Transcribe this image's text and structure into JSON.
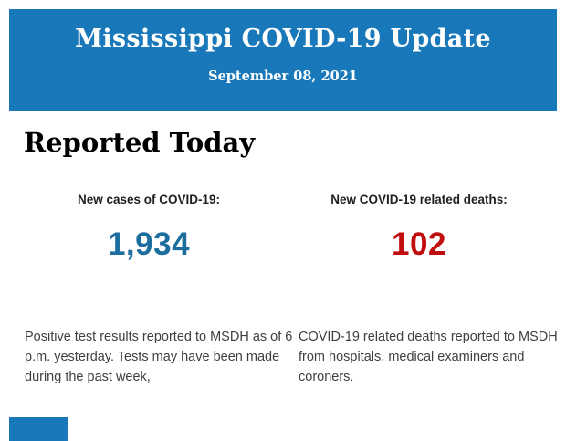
{
  "header": {
    "title": "Mississippi COVID-19 Update",
    "date": "September 08, 2021",
    "background_color": "#1878B9",
    "text_color": "#FFFFFF"
  },
  "main": {
    "heading": "Reported Today",
    "stats": [
      {
        "label": "New cases of COVID-19:",
        "value": "1,934",
        "value_color": "#1B6E9E",
        "description": "Positive test results reported to MSDH as of 6 p.m. yesterday. Tests may have been made during the past week,"
      },
      {
        "label": "New COVID-19 related deaths:",
        "value": "102",
        "value_color": "#C00D0D",
        "description": "COVID-19 related deaths reported to MSDH from hospitals, medical examiners and coroners."
      }
    ]
  },
  "footer": {
    "next_section_banner_color": "#1878B9"
  }
}
